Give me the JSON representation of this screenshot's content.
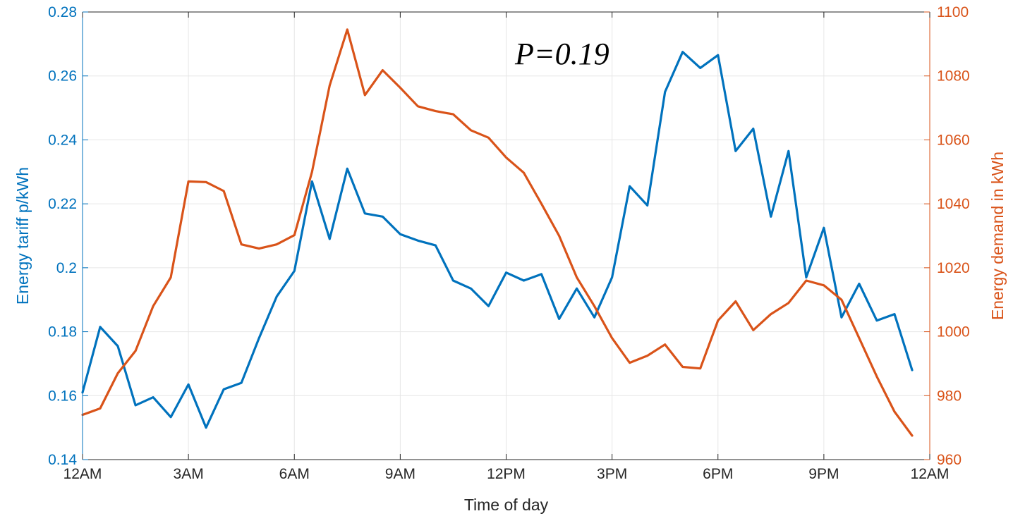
{
  "chart_data": {
    "type": "line",
    "title": "",
    "xlabel": "Time of day",
    "ylabel_left": "Energy tariff p/kWh",
    "ylabel_right": "Energy demand in kWh",
    "annotation": "P=0.19",
    "xlim": [
      0,
      48
    ],
    "ylim_left": [
      0.14,
      0.28
    ],
    "ylim_right": [
      960,
      1100
    ],
    "x_ticks": [
      0,
      6,
      12,
      18,
      24,
      30,
      36,
      42,
      48
    ],
    "x_tick_labels": [
      "12AM",
      "3AM",
      "6AM",
      "9AM",
      "12PM",
      "3PM",
      "6PM",
      "9PM",
      "12AM"
    ],
    "y_left_ticks": [
      0.14,
      0.16,
      0.18,
      0.2,
      0.22,
      0.24,
      0.26,
      0.28
    ],
    "y_left_tick_labels": [
      "0.14",
      "0.16",
      "0.18",
      "0.2",
      "0.22",
      "0.24",
      "0.26",
      "0.28"
    ],
    "y_right_ticks": [
      960,
      980,
      1000,
      1020,
      1040,
      1060,
      1080,
      1100
    ],
    "y_right_tick_labels": [
      "960",
      "980",
      "1000",
      "1020",
      "1040",
      "1060",
      "1080",
      "1100"
    ],
    "grid": true,
    "legend": "none",
    "colors": {
      "left": "#0072BD",
      "right": "#D95319",
      "grid": "#E6E6E6",
      "axis": "#262626"
    },
    "series": [
      {
        "axis": "left",
        "x": [
          0,
          1,
          2,
          3,
          4,
          5,
          6,
          7,
          8,
          9,
          10,
          11,
          12,
          13,
          14,
          15,
          16,
          17,
          18,
          19,
          20,
          21,
          22,
          23,
          24,
          25,
          26,
          27,
          28,
          29,
          30,
          31,
          32,
          33,
          34,
          35,
          36,
          37,
          38,
          39,
          40,
          41,
          42,
          43,
          44,
          45,
          46,
          47
        ],
        "values": [
          0.161,
          0.1815,
          0.1755,
          0.157,
          0.1595,
          0.1533,
          0.1635,
          0.15,
          0.162,
          0.164,
          0.178,
          0.191,
          0.199,
          0.227,
          0.209,
          0.231,
          0.217,
          0.216,
          0.2105,
          0.2085,
          0.207,
          0.196,
          0.1935,
          0.188,
          0.1985,
          0.196,
          0.198,
          0.184,
          0.1935,
          0.1845,
          0.197,
          0.2255,
          0.2195,
          0.255,
          0.2675,
          0.2625,
          0.2665,
          0.2365,
          0.2435,
          0.216,
          0.2365,
          0.197,
          0.2125,
          0.1845,
          0.195,
          0.1835,
          0.1855,
          0.168
        ]
      },
      {
        "axis": "right",
        "x": [
          0,
          1,
          2,
          3,
          4,
          5,
          6,
          7,
          8,
          9,
          10,
          11,
          12,
          13,
          14,
          15,
          16,
          17,
          18,
          19,
          20,
          21,
          22,
          23,
          24,
          25,
          26,
          27,
          28,
          29,
          30,
          31,
          32,
          33,
          34,
          35,
          36,
          37,
          38,
          39,
          40,
          41,
          42,
          43,
          44,
          45,
          46,
          47
        ],
        "values": [
          974,
          976,
          987,
          994,
          1008,
          1017,
          1047,
          1046.8,
          1044,
          1027.3,
          1026,
          1027.3,
          1030.2,
          1050,
          1077,
          1094.5,
          1074,
          1081.8,
          1076.3,
          1070.5,
          1069,
          1068,
          1063,
          1060.7,
          1054.5,
          1049.7,
          1040,
          1030,
          1017,
          1008,
          998,
          990.3,
          992.5,
          996,
          989,
          988.5,
          1003.5,
          1009.5,
          1000.5,
          1005.5,
          1009,
          1016,
          1014.5,
          1010,
          998,
          986,
          975,
          967.5
        ]
      }
    ]
  }
}
